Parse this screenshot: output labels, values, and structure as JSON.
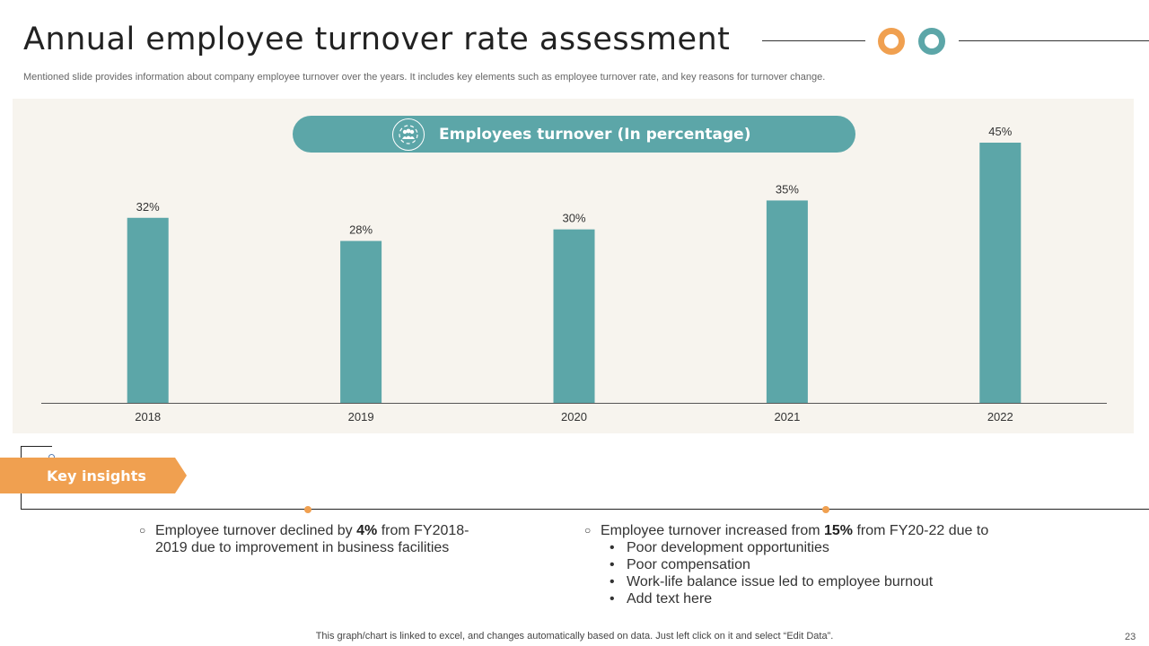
{
  "slide": {
    "title": "Annual employee turnover rate assessment",
    "subtitle": "Mentioned slide provides information about company employee turnover over the years. It includes key elements such as employee turnover rate, and key reasons for turnover change.",
    "footer_note": "This graph/chart is linked to excel,  and changes automatically based on data. Just left click on it and select “Edit Data”.",
    "page_number": "23"
  },
  "colors": {
    "accent_orange": "#f0a050",
    "accent_teal": "#5ca6a8",
    "panel_bg": "#f7f4ee"
  },
  "chart_header": {
    "icon": "team-cycle-icon",
    "label": "Employees turnover (In percentage)"
  },
  "chart_data": {
    "type": "bar",
    "title": "Employees turnover (In percentage)",
    "categories": [
      "2018",
      "2019",
      "2020",
      "2021",
      "2022"
    ],
    "values": [
      32,
      28,
      30,
      35,
      45
    ],
    "value_labels": [
      "32%",
      "28%",
      "30%",
      "35%",
      "45%"
    ],
    "xlabel": "",
    "ylabel": "",
    "ylim": [
      0,
      45
    ],
    "grid": false,
    "legend": "none"
  },
  "insights": {
    "tag_label": "Key insights",
    "left": {
      "prefix": "Employee turnover  declined by ",
      "highlight": "4%",
      "suffix": " from FY2018-",
      "line2": "2019 due to improvement in business facilities"
    },
    "right": {
      "prefix": "Employee turnover  increased from ",
      "highlight": "15%",
      "suffix": " from FY20-22 due to",
      "bullets": [
        "Poor development opportunities",
        "Poor compensation",
        "Work-life balance issue led to employee burnout",
        "Add text here"
      ]
    }
  }
}
